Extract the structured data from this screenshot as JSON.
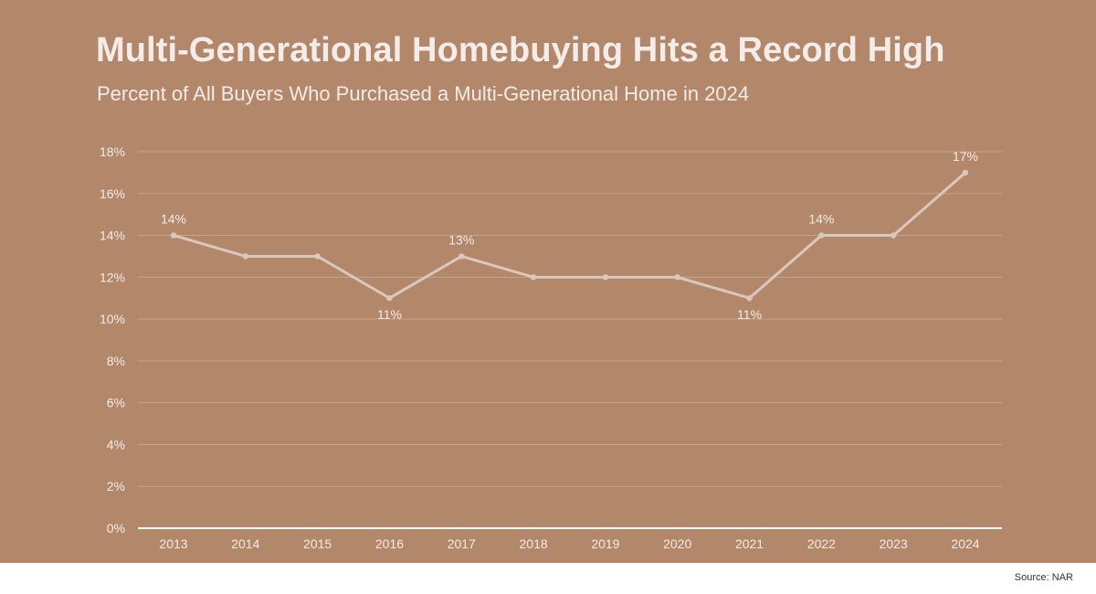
{
  "colors": {
    "background": "#b3876a",
    "line": "#d8c8bd",
    "text": "#f4ece8",
    "grid": "#c7a38b",
    "axis": "#ffffff"
  },
  "chart_data": {
    "type": "line",
    "title": "Multi-Generational Homebuying Hits a Record High",
    "subtitle": "Percent of All Buyers Who Purchased a Multi-Generational Home in 2024",
    "xlabel": "",
    "ylabel": "",
    "x": [
      "2013",
      "2014",
      "2015",
      "2016",
      "2017",
      "2018",
      "2019",
      "2020",
      "2021",
      "2022",
      "2023",
      "2024"
    ],
    "series": [
      {
        "values": [
          14,
          13,
          13,
          11,
          13,
          12,
          12,
          12,
          11,
          14,
          14,
          17
        ]
      }
    ],
    "data_labels": [
      {
        "x": "2013",
        "text": "14%",
        "placement": "above"
      },
      {
        "x": "2016",
        "text": "11%",
        "placement": "below"
      },
      {
        "x": "2017",
        "text": "13%",
        "placement": "above"
      },
      {
        "x": "2021",
        "text": "11%",
        "placement": "below"
      },
      {
        "x": "2022",
        "text": "14%",
        "placement": "above"
      },
      {
        "x": "2024",
        "text": "17%",
        "placement": "above"
      }
    ],
    "ylim": [
      0,
      18
    ],
    "yticks": [
      0,
      2,
      4,
      6,
      8,
      10,
      12,
      14,
      16,
      18
    ],
    "ytick_labels": [
      "0%",
      "2%",
      "4%",
      "6%",
      "8%",
      "10%",
      "12%",
      "14%",
      "16%",
      "18%"
    ],
    "grid": true,
    "legend": "none"
  },
  "source": "Source: NAR"
}
